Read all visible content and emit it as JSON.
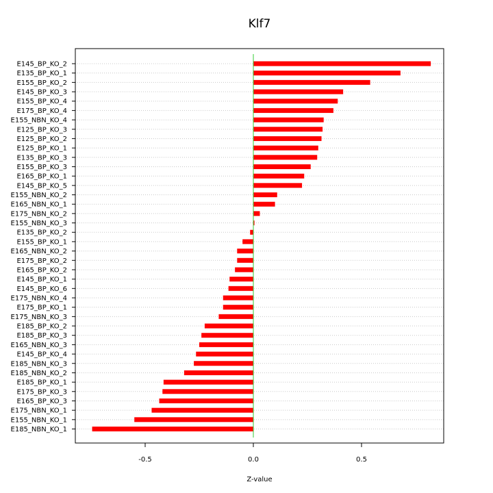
{
  "chart_data": {
    "type": "bar",
    "orientation": "horizontal",
    "title": "Klf7",
    "xlabel": "Z-value",
    "ylabel": "",
    "xlim": [
      -0.8,
      0.88
    ],
    "xticks": [
      -0.5,
      0,
      0.5
    ],
    "xtick_labels": [
      "-0.5",
      "0.0",
      "0.5"
    ],
    "grid": "horizontal dotted",
    "bar_color": "#ff0000",
    "zero_line_color": "#33cc33",
    "categories": [
      "E145_BP_KO_2",
      "E135_BP_KO_1",
      "E155_BP_KO_2",
      "E145_BP_KO_3",
      "E155_BP_KO_4",
      "E175_BP_KO_4",
      "E155_NBN_KO_4",
      "E125_BP_KO_3",
      "E125_BP_KO_2",
      "E125_BP_KO_1",
      "E135_BP_KO_3",
      "E155_BP_KO_3",
      "E165_BP_KO_1",
      "E145_BP_KO_5",
      "E155_NBN_KO_2",
      "E165_NBN_KO_1",
      "E175_NBN_KO_2",
      "E155_NBN_KO_3",
      "E135_BP_KO_2",
      "E155_BP_KO_1",
      "E165_NBN_KO_2",
      "E175_BP_KO_2",
      "E165_BP_KO_2",
      "E145_BP_KO_1",
      "E145_BP_KO_6",
      "E175_NBN_KO_4",
      "E175_BP_KO_1",
      "E175_NBN_KO_3",
      "E185_BP_KO_2",
      "E185_BP_KO_3",
      "E165_NBN_KO_3",
      "E145_BP_KO_4",
      "E185_NBN_KO_3",
      "E185_NBN_KO_2",
      "E185_BP_KO_1",
      "E175_BP_KO_3",
      "E165_BP_KO_3",
      "E175_NBN_KO_1",
      "E155_NBN_KO_1",
      "E185_NBN_KO_1"
    ],
    "values": [
      0.82,
      0.68,
      0.54,
      0.415,
      0.39,
      0.37,
      0.325,
      0.32,
      0.315,
      0.3,
      0.295,
      0.265,
      0.235,
      0.225,
      0.11,
      0.1,
      0.03,
      0.005,
      -0.015,
      -0.05,
      -0.075,
      -0.075,
      -0.085,
      -0.11,
      -0.115,
      -0.14,
      -0.14,
      -0.16,
      -0.225,
      -0.24,
      -0.25,
      -0.265,
      -0.275,
      -0.32,
      -0.415,
      -0.42,
      -0.435,
      -0.47,
      -0.55,
      -0.745
    ]
  }
}
